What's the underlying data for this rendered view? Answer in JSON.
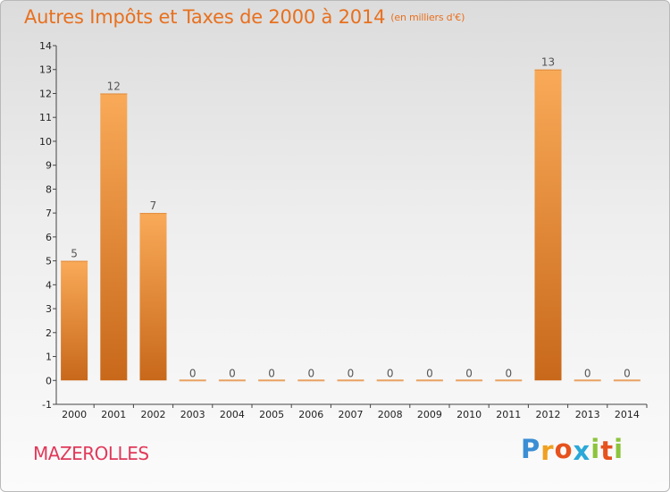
{
  "title": "Autres Impôts et Taxes de 2000 à 2014",
  "unit_note": "(en milliers d'€)",
  "commune": "MAZEROLLES",
  "brand": {
    "letters": [
      "P",
      "r",
      "o",
      "x",
      "i",
      "t",
      "i"
    ],
    "colors": [
      "#3a8ed4",
      "#f0a020",
      "#e6521e",
      "#2aa8d8",
      "#8cc43c",
      "#e6521e",
      "#8cc43c"
    ]
  },
  "colors": {
    "title": "#e8701e",
    "commune": "#e0395a",
    "bar_light": "#f9aa58",
    "bar_dark": "#c8681a",
    "axis": "#444444"
  },
  "chart_data": {
    "type": "bar",
    "title": "Autres Impôts et Taxes de 2000 à 2014",
    "xlabel": "",
    "ylabel": "",
    "ylim": [
      -1,
      14
    ],
    "yticks": [
      "-1",
      "0",
      "1",
      "2",
      "3",
      "4",
      "5",
      "6",
      "7",
      "8",
      "9",
      "10",
      "11",
      "12",
      "13",
      "14"
    ],
    "categories": [
      "2000",
      "2001",
      "2002",
      "2003",
      "2004",
      "2005",
      "2006",
      "2007",
      "2008",
      "2009",
      "2010",
      "2011",
      "2012",
      "2013",
      "2014"
    ],
    "values": [
      5,
      12,
      7,
      0,
      0,
      0,
      0,
      0,
      0,
      0,
      0,
      0,
      13,
      0,
      0
    ],
    "value_labels": [
      "5",
      "12",
      "7",
      "0",
      "0",
      "0",
      "0",
      "0",
      "0",
      "0",
      "0",
      "0",
      "13",
      "0",
      "0"
    ],
    "grid": false,
    "legend": "none"
  }
}
